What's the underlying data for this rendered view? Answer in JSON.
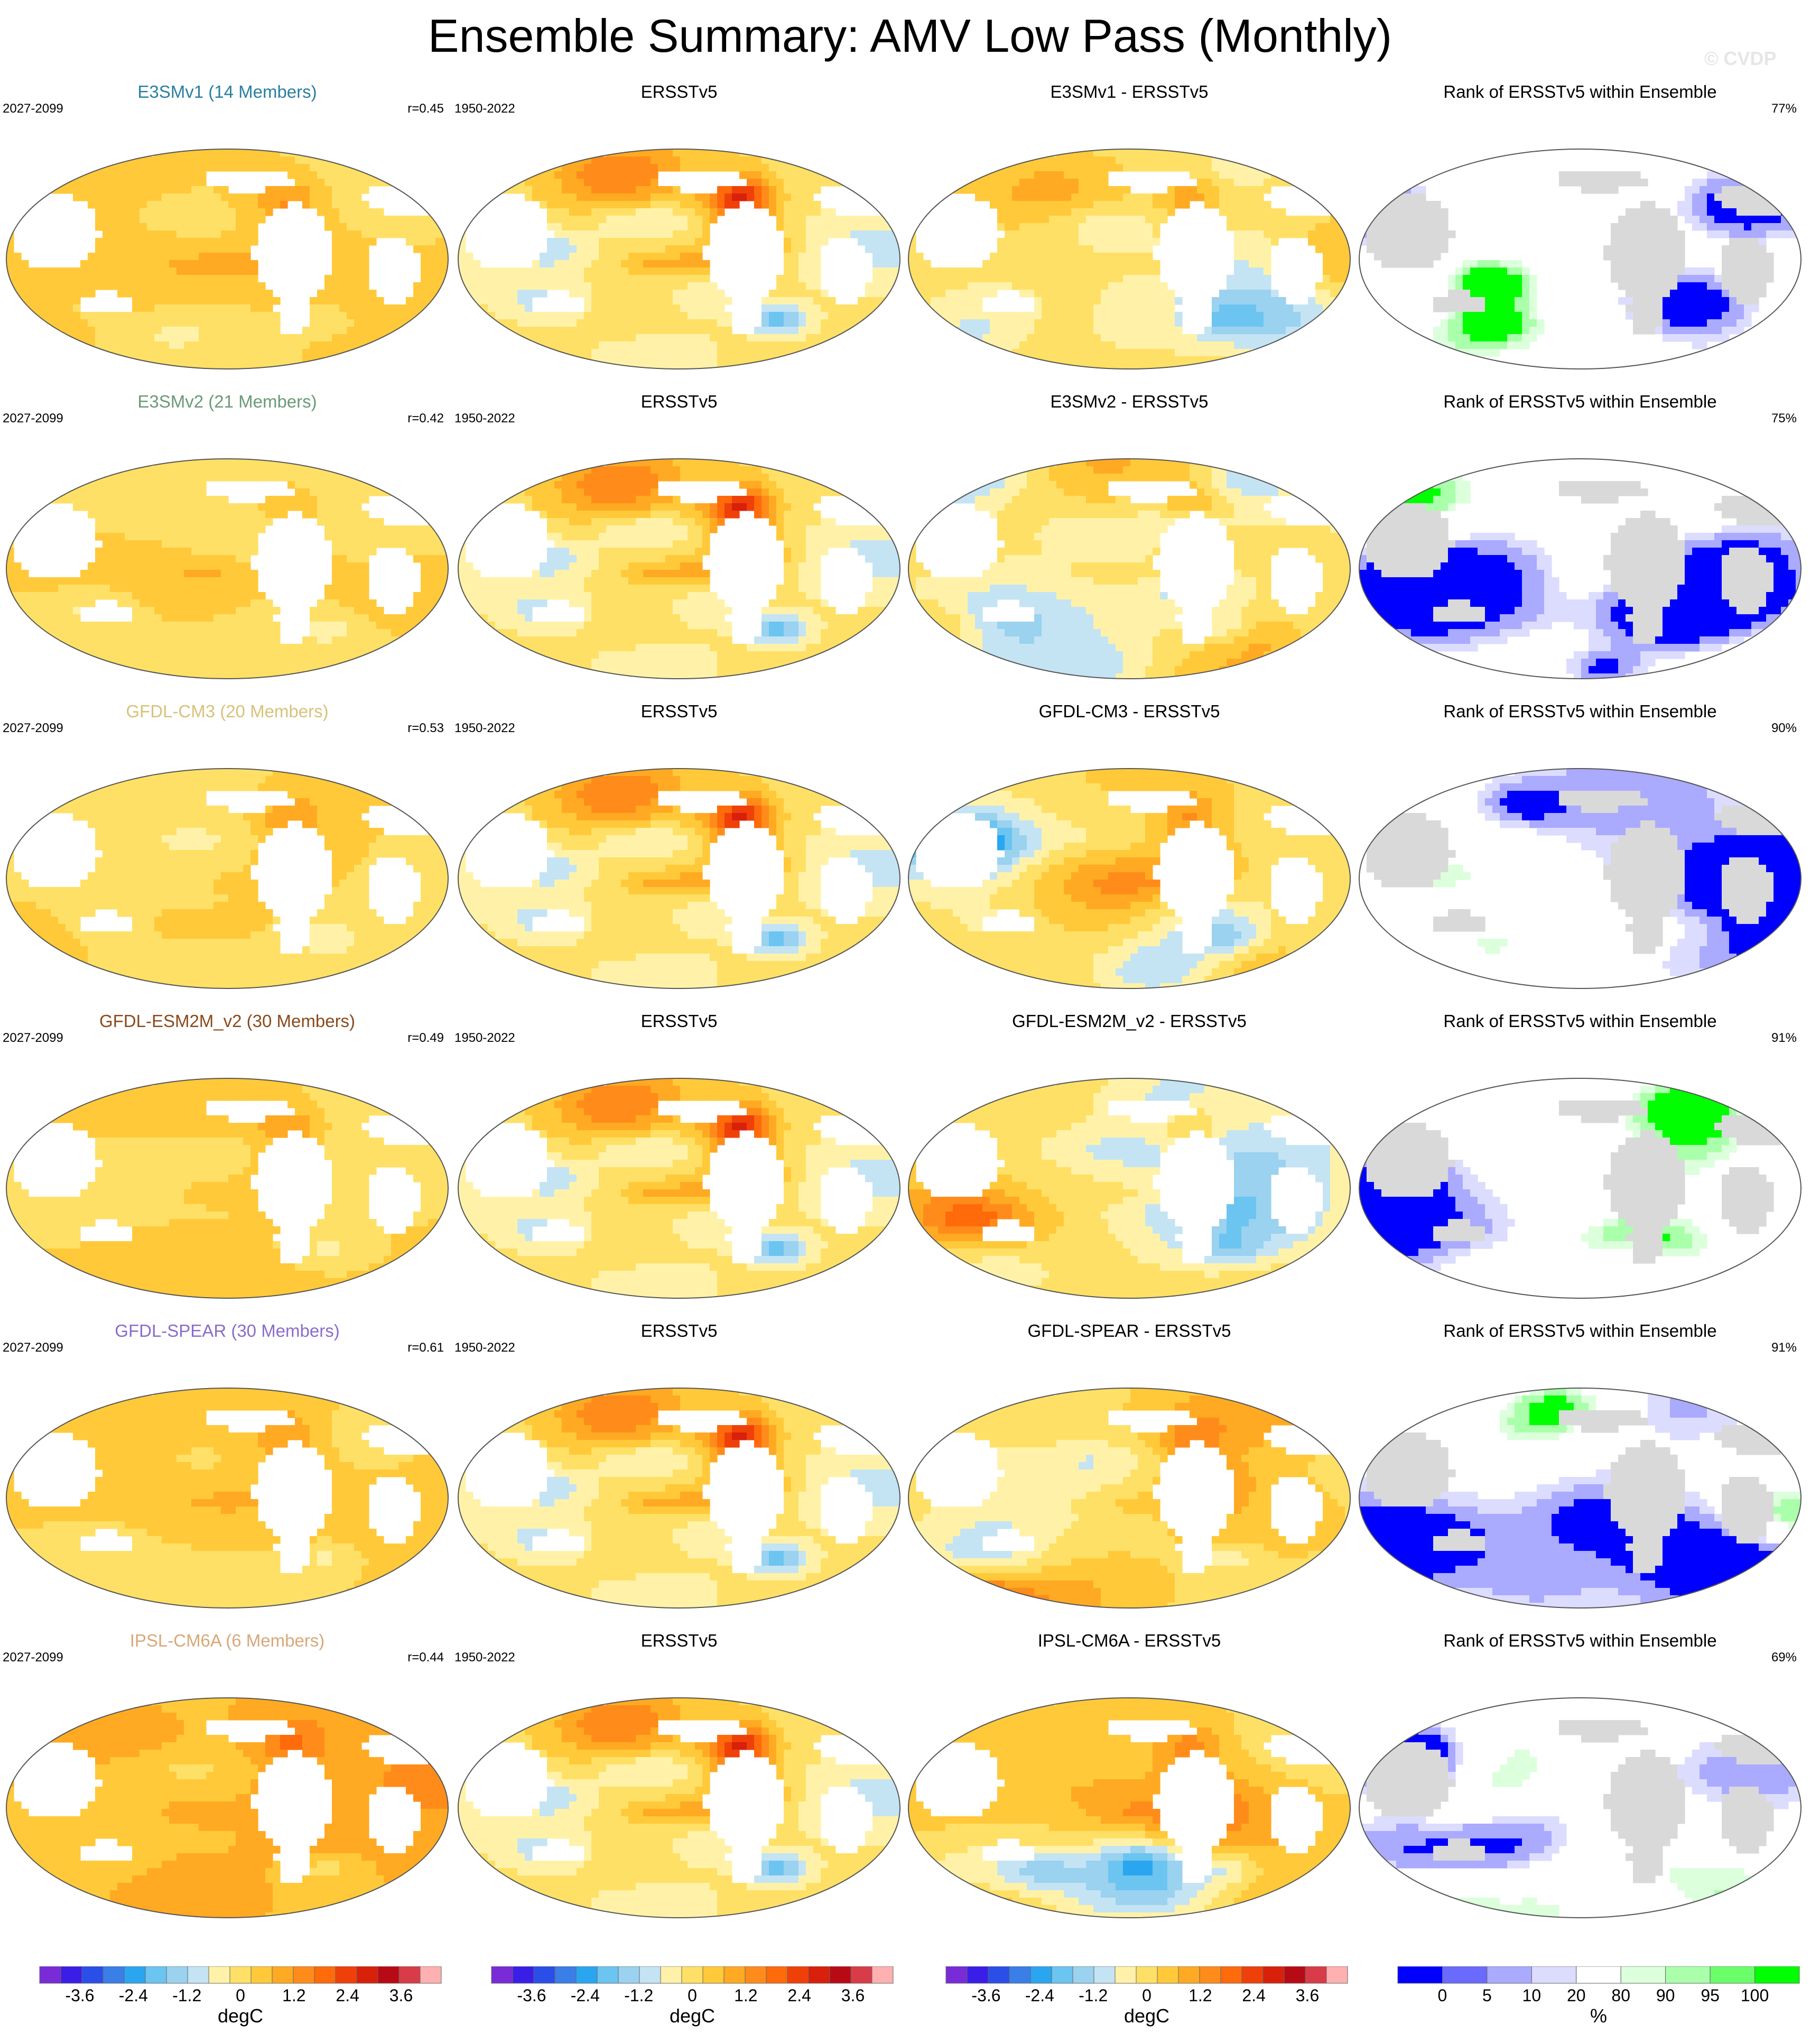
{
  "title": "Ensemble Summary: AMV Low Pass (Monthly)",
  "watermark": "© CVDP",
  "chart_data": {
    "type": "heatmap",
    "title": "Ensemble Summary: AMV Low Pass (Monthly)",
    "rows": [
      {
        "model": "E3SMv1 (14 Members)",
        "model_color": "#2a7fa0",
        "ens_period": "2027-2099",
        "pattern_corr": "r=0.45",
        "obs_title": "ERSSTv5",
        "obs_period": "1950-2022",
        "diff_title": "E3SMv1 - ERSSTv5",
        "rank_title": "Rank of ERSSTv5 within Ensemble",
        "rank_pct": "77%",
        "ens_seed": 11,
        "ens_bias": 0.35,
        "ens_var": 0.55,
        "diff_seed": 12,
        "diff_bias": 0.0,
        "diff_var": 1.0,
        "rank_seed": 13,
        "rank_level": 0.45
      },
      {
        "model": "E3SMv2 (21 Members)",
        "model_color": "#6a9a78",
        "ens_period": "2027-2099",
        "pattern_corr": "r=0.42",
        "obs_title": "ERSSTv5",
        "obs_period": "1950-2022",
        "diff_title": "E3SMv2 - ERSSTv5",
        "rank_title": "Rank of ERSSTv5 within Ensemble",
        "rank_pct": "75%",
        "ens_seed": 21,
        "ens_bias": 0.05,
        "ens_var": 0.6,
        "diff_seed": 22,
        "diff_bias": 0.0,
        "diff_var": 1.0,
        "rank_seed": 23,
        "rank_level": 0.5
      },
      {
        "model": "GFDL-CM3 (20 Members)",
        "model_color": "#d8c27a",
        "ens_period": "2027-2099",
        "pattern_corr": "r=0.53",
        "obs_title": "ERSSTv5",
        "obs_period": "1950-2022",
        "diff_title": "GFDL-CM3 - ERSSTv5",
        "rank_title": "Rank of ERSSTv5 within Ensemble",
        "rank_pct": "90%",
        "ens_seed": 31,
        "ens_bias": 0.15,
        "ens_var": 0.6,
        "diff_seed": 32,
        "diff_bias": 0.0,
        "diff_var": 1.0,
        "rank_seed": 33,
        "rank_level": 0.25
      },
      {
        "model": "GFDL-ESM2M_v2 (30 Members)",
        "model_color": "#8a4a1c",
        "ens_period": "2027-2099",
        "pattern_corr": "r=0.49",
        "obs_title": "ERSSTv5",
        "obs_period": "1950-2022",
        "diff_title": "GFDL-ESM2M_v2 - ERSSTv5",
        "rank_title": "Rank of ERSSTv5 within Ensemble",
        "rank_pct": "91%",
        "ens_seed": 41,
        "ens_bias": 0.25,
        "ens_var": 0.55,
        "diff_seed": 42,
        "diff_bias": 0.0,
        "diff_var": 1.0,
        "rank_seed": 43,
        "rank_level": 0.22
      },
      {
        "model": "GFDL-SPEAR (30 Members)",
        "model_color": "#8a6ccc",
        "ens_period": "2027-2099",
        "pattern_corr": "r=0.61",
        "obs_title": "ERSSTv5",
        "obs_period": "1950-2022",
        "diff_title": "GFDL-SPEAR - ERSSTv5",
        "rank_title": "Rank of ERSSTv5 within Ensemble",
        "rank_pct": "91%",
        "ens_seed": 51,
        "ens_bias": 0.35,
        "ens_var": 0.55,
        "diff_seed": 52,
        "diff_bias": 0.1,
        "diff_var": 1.0,
        "rank_seed": 53,
        "rank_level": 0.22
      },
      {
        "model": "IPSL-CM6A (6 Members)",
        "model_color": "#d8a87a",
        "ens_period": "2027-2099",
        "pattern_corr": "r=0.44",
        "obs_title": "ERSSTv5",
        "obs_period": "1950-2022",
        "diff_title": "IPSL-CM6A - ERSSTv5",
        "rank_title": "Rank of ERSSTv5 within Ensemble",
        "rank_pct": "69%",
        "ens_seed": 61,
        "ens_bias": 0.6,
        "ens_var": 0.6,
        "diff_seed": 62,
        "diff_bias": 0.3,
        "diff_var": 1.0,
        "rank_seed": 63,
        "rank_level": 0.65
      }
    ],
    "obs_seed": 7,
    "sst_colorbar": {
      "unit": "degC",
      "colors": [
        "#7a2bd8",
        "#3a1ee8",
        "#2a4ee8",
        "#3a7ee8",
        "#2aa6f0",
        "#6cc4f0",
        "#9ad2ef",
        "#c4e4f4",
        "#fff2a8",
        "#ffe066",
        "#ffc93a",
        "#ffaa22",
        "#ff8c1a",
        "#ff6a0a",
        "#f0400a",
        "#d8200a",
        "#b80a14",
        "#d83c48",
        "#ffb0b0"
      ],
      "tick_labels": [
        "-3.6",
        "-2.4",
        "-1.2",
        "0",
        "1.2",
        "2.4",
        "3.6"
      ],
      "tick_values": [
        -3.6,
        -2.4,
        -1.2,
        0,
        1.2,
        2.4,
        3.6
      ],
      "range": [
        -4.5,
        4.5
      ]
    },
    "rank_colorbar": {
      "unit": "%",
      "colors": [
        "#0000ff",
        "#6a6aff",
        "#aaaaff",
        "#dcdcff",
        "#ffffff",
        "#dcffdc",
        "#aaffaa",
        "#6aff6a",
        "#00ff00"
      ],
      "tick_labels": [
        "0",
        "5",
        "10",
        "20",
        "80",
        "90",
        "95",
        "100"
      ]
    }
  }
}
